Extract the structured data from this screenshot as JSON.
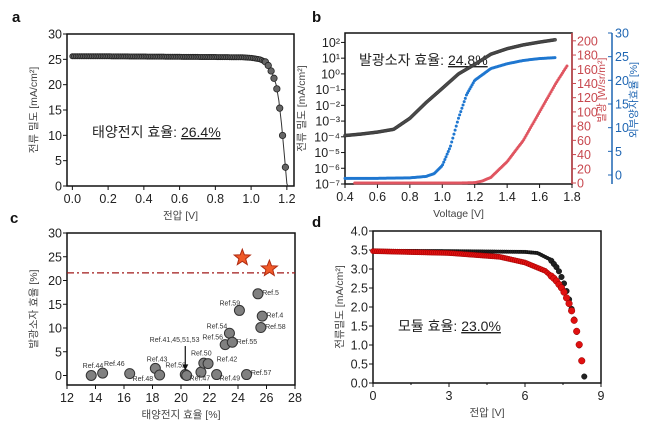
{
  "chart_data": [
    {
      "panel": "a",
      "type": "line",
      "xlabel": "전압 [V]",
      "ylabel": "전류 밀도 [mA/cm²]",
      "xlim": [
        -0.03,
        1.24
      ],
      "ylim": [
        0,
        30
      ],
      "xticks": [
        "0.0",
        "0.2",
        "0.4",
        "0.6",
        "0.8",
        "1.0",
        "1.2"
      ],
      "xtick_values": [
        0,
        0.2,
        0.4,
        0.6,
        0.8,
        1.0,
        1.2
      ],
      "yticks": [
        "0",
        "5",
        "10",
        "15",
        "20",
        "25",
        "30"
      ],
      "ytick_values": [
        0,
        5,
        10,
        15,
        20,
        25,
        30
      ],
      "annotation": {
        "label": "태양전지 효율: ",
        "value": "26.4%"
      },
      "series": [
        {
          "color": "#333333",
          "x": [
            0,
            0.2,
            0.4,
            0.6,
            0.8,
            0.95,
            1.0,
            1.05,
            1.08,
            1.1,
            1.12,
            1.14,
            1.155,
            1.17,
            1.185,
            1.2
          ],
          "y": [
            25.6,
            25.6,
            25.55,
            25.5,
            25.45,
            25.4,
            25.3,
            25.0,
            24.5,
            23.6,
            22.1,
            20.0,
            16.9,
            12.3,
            6.5,
            0.5
          ]
        }
      ]
    },
    {
      "panel": "b",
      "type": "line",
      "xlabel": "Voltage [V]",
      "ylabel": "전류 밀도 [mA/cm²]",
      "ylabel_right": "발광 [W/sr/m²]",
      "ylabel_right2": "외부양자효율 [%]",
      "xlim": [
        0.4,
        1.8
      ],
      "xticks": [
        "0.4",
        "0.6",
        "0.8",
        "1.0",
        "1.2",
        "1.4",
        "1.6",
        "1.8"
      ],
      "xtick_values": [
        0.4,
        0.6,
        0.8,
        1.0,
        1.2,
        1.4,
        1.6,
        1.8
      ],
      "yscale": "log",
      "ylim_log10": [
        -7,
        2.6
      ],
      "yticks": [
        "10⁻⁷",
        "10⁻⁶",
        "10⁻⁵",
        "10⁻⁴",
        "10⁻³",
        "10⁻²",
        "10⁻¹",
        "10⁰",
        "10¹",
        "10²"
      ],
      "ytick_values": [
        -7,
        -6,
        -5,
        -4,
        -3,
        -2,
        -1,
        0,
        1,
        2
      ],
      "y2lim": [
        -1.4,
        211
      ],
      "y2ticks": [
        "0",
        "20",
        "40",
        "60",
        "80",
        "100",
        "120",
        "140",
        "160",
        "180",
        "200"
      ],
      "y2tick_values": [
        0,
        20,
        40,
        60,
        80,
        100,
        120,
        140,
        160,
        180,
        200
      ],
      "y3lim": [
        -1.9,
        30
      ],
      "y3ticks": [
        "0",
        "5",
        "10",
        "15",
        "20",
        "25",
        "30"
      ],
      "y3tick_values": [
        0,
        5,
        10,
        15,
        20,
        25,
        30
      ],
      "axis_colors": {
        "left": "#111111",
        "right": "#c8484f",
        "right2": "#1f66b3"
      },
      "annotation": {
        "label": "발광소자 효율: ",
        "value": "24.8%"
      },
      "series": [
        {
          "axis": "left",
          "color": "#333333",
          "x": [
            0.4,
            0.5,
            0.6,
            0.7,
            0.8,
            0.9,
            1.0,
            1.1,
            1.2,
            1.3,
            1.4,
            1.5,
            1.6,
            1.7
          ],
          "y": [
            0.00012,
            0.00015,
            0.0002,
            0.0003,
            0.0015,
            0.015,
            0.12,
            1.0,
            4,
            18,
            40,
            70,
            105,
            150
          ]
        },
        {
          "axis": "right2",
          "color": "#1f77d0",
          "x": [
            0.4,
            0.6,
            0.8,
            0.9,
            0.95,
            1.0,
            1.05,
            1.1,
            1.15,
            1.2,
            1.3,
            1.4,
            1.5,
            1.6,
            1.7
          ],
          "y": [
            -0.7,
            -0.7,
            -0.6,
            -0.3,
            0.3,
            2,
            6,
            12,
            17,
            20,
            22.5,
            23.5,
            24.2,
            24.6,
            24.8
          ]
        },
        {
          "axis": "right",
          "color": "#e05560",
          "x": [
            0.46,
            0.8,
            1.1,
            1.2,
            1.25,
            1.3,
            1.4,
            1.5,
            1.6,
            1.7,
            1.77
          ],
          "y": [
            0,
            0,
            0,
            0.5,
            3,
            8,
            30,
            60,
            100,
            140,
            165
          ]
        }
      ]
    },
    {
      "panel": "c",
      "type": "scatter",
      "xlabel": "태양전지 효율 [%]",
      "ylabel": "발광소자 효율 [%]",
      "xlim": [
        12,
        28
      ],
      "ylim": [
        -2,
        30
      ],
      "xticks": [
        "12",
        "14",
        "16",
        "18",
        "20",
        "22",
        "24",
        "26",
        "28"
      ],
      "xtick_values": [
        12,
        14,
        16,
        18,
        20,
        22,
        24,
        26,
        28
      ],
      "yticks": [
        "0",
        "5",
        "10",
        "15",
        "20",
        "25",
        "30"
      ],
      "ytick_values": [
        0,
        5,
        10,
        15,
        20,
        25,
        30
      ],
      "reference_line": {
        "y": 21.6,
        "style": "dash-dot",
        "color": "#a01818"
      },
      "stars": {
        "color": "#f05a28",
        "x": [
          24.3,
          26.2
        ],
        "y": [
          24.8,
          22.5
        ]
      },
      "points": {
        "color": "#808080",
        "x": [
          13.7,
          14.5,
          16.4,
          18.2,
          18.5,
          20.3,
          20.4,
          21.4,
          21.6,
          21.9,
          22.5,
          23.1,
          23.4,
          23.6,
          24.1,
          24.6,
          25.4,
          25.7,
          25.6
        ],
        "y": [
          0,
          0.5,
          0.4,
          1.5,
          0.1,
          0.2,
          0,
          0.7,
          2.6,
          2.5,
          0.2,
          6.5,
          8.9,
          7.0,
          13.7,
          0.2,
          17.2,
          12.5,
          10.1
        ]
      },
      "labels": [
        {
          "text": "Ref.44",
          "x": 13.1,
          "y": 1.6
        },
        {
          "text": "Ref.46",
          "x": 14.6,
          "y": 2.0
        },
        {
          "text": "Ref.48",
          "x": 16.6,
          "y": -1.2
        },
        {
          "text": "Ref.43",
          "x": 17.6,
          "y": 3.0
        },
        {
          "text": "Ref.52",
          "x": 18.9,
          "y": 1.7
        },
        {
          "text": "Ref.41,45,51,53",
          "x": 17.8,
          "y": 7.1
        },
        {
          "text": "Ref.50",
          "x": 20.7,
          "y": 4.2
        },
        {
          "text": "Ref.47",
          "x": 20.6,
          "y": -1.0
        },
        {
          "text": "Ref.42",
          "x": 22.5,
          "y": 3.0
        },
        {
          "text": "Ref.49",
          "x": 22.7,
          "y": -1.0
        },
        {
          "text": "Ref.56",
          "x": 21.5,
          "y": 7.6
        },
        {
          "text": "Ref.54",
          "x": 21.8,
          "y": 9.9
        },
        {
          "text": "Ref.55",
          "x": 23.9,
          "y": 6.6
        },
        {
          "text": "Ref.59",
          "x": 22.7,
          "y": 14.7
        },
        {
          "text": "Ref.57",
          "x": 24.9,
          "y": 0.1
        },
        {
          "text": "Ref.5",
          "x": 25.7,
          "y": 16.9
        },
        {
          "text": "Ref.4",
          "x": 26.0,
          "y": 12.2
        },
        {
          "text": "Ref.58",
          "x": 25.9,
          "y": 9.8
        }
      ],
      "arrow": {
        "x": 20.3,
        "y_from": 6.2,
        "y_to": 1.3
      }
    },
    {
      "panel": "d",
      "type": "line",
      "xlabel": "전압 [V]",
      "ylabel": "전류밀도 [mA/cm²]",
      "xlim": [
        0,
        9
      ],
      "ylim": [
        0,
        4
      ],
      "xticks": [
        "0",
        "3",
        "6",
        "9"
      ],
      "xtick_values": [
        0,
        3,
        6,
        9
      ],
      "yticks": [
        "0.0",
        "0.5",
        "1.0",
        "1.5",
        "2.0",
        "2.5",
        "3.0",
        "3.5",
        "4.0"
      ],
      "ytick_values": [
        0,
        0.5,
        1,
        1.5,
        2,
        2.5,
        3,
        3.5,
        4
      ],
      "annotation": {
        "label": "모듈 효율: ",
        "value": "23.0%"
      },
      "series": [
        {
          "color": "#111111",
          "x": [
            0,
            3,
            6,
            6.5,
            7.0,
            7.3,
            7.5,
            7.7,
            7.9,
            8.1,
            8.3,
            8.36
          ],
          "y": [
            3.48,
            3.47,
            3.45,
            3.42,
            3.25,
            3.0,
            2.7,
            2.3,
            1.8,
            1.15,
            0.35,
            0.08
          ]
        },
        {
          "color": "#e01010",
          "x": [
            0,
            3,
            5,
            6,
            6.8,
            7.2,
            7.5,
            7.8,
            8.0,
            8.2,
            8.33
          ],
          "y": [
            3.47,
            3.42,
            3.32,
            3.17,
            2.95,
            2.72,
            2.45,
            2.0,
            1.5,
            0.8,
            0.1
          ]
        }
      ]
    }
  ]
}
